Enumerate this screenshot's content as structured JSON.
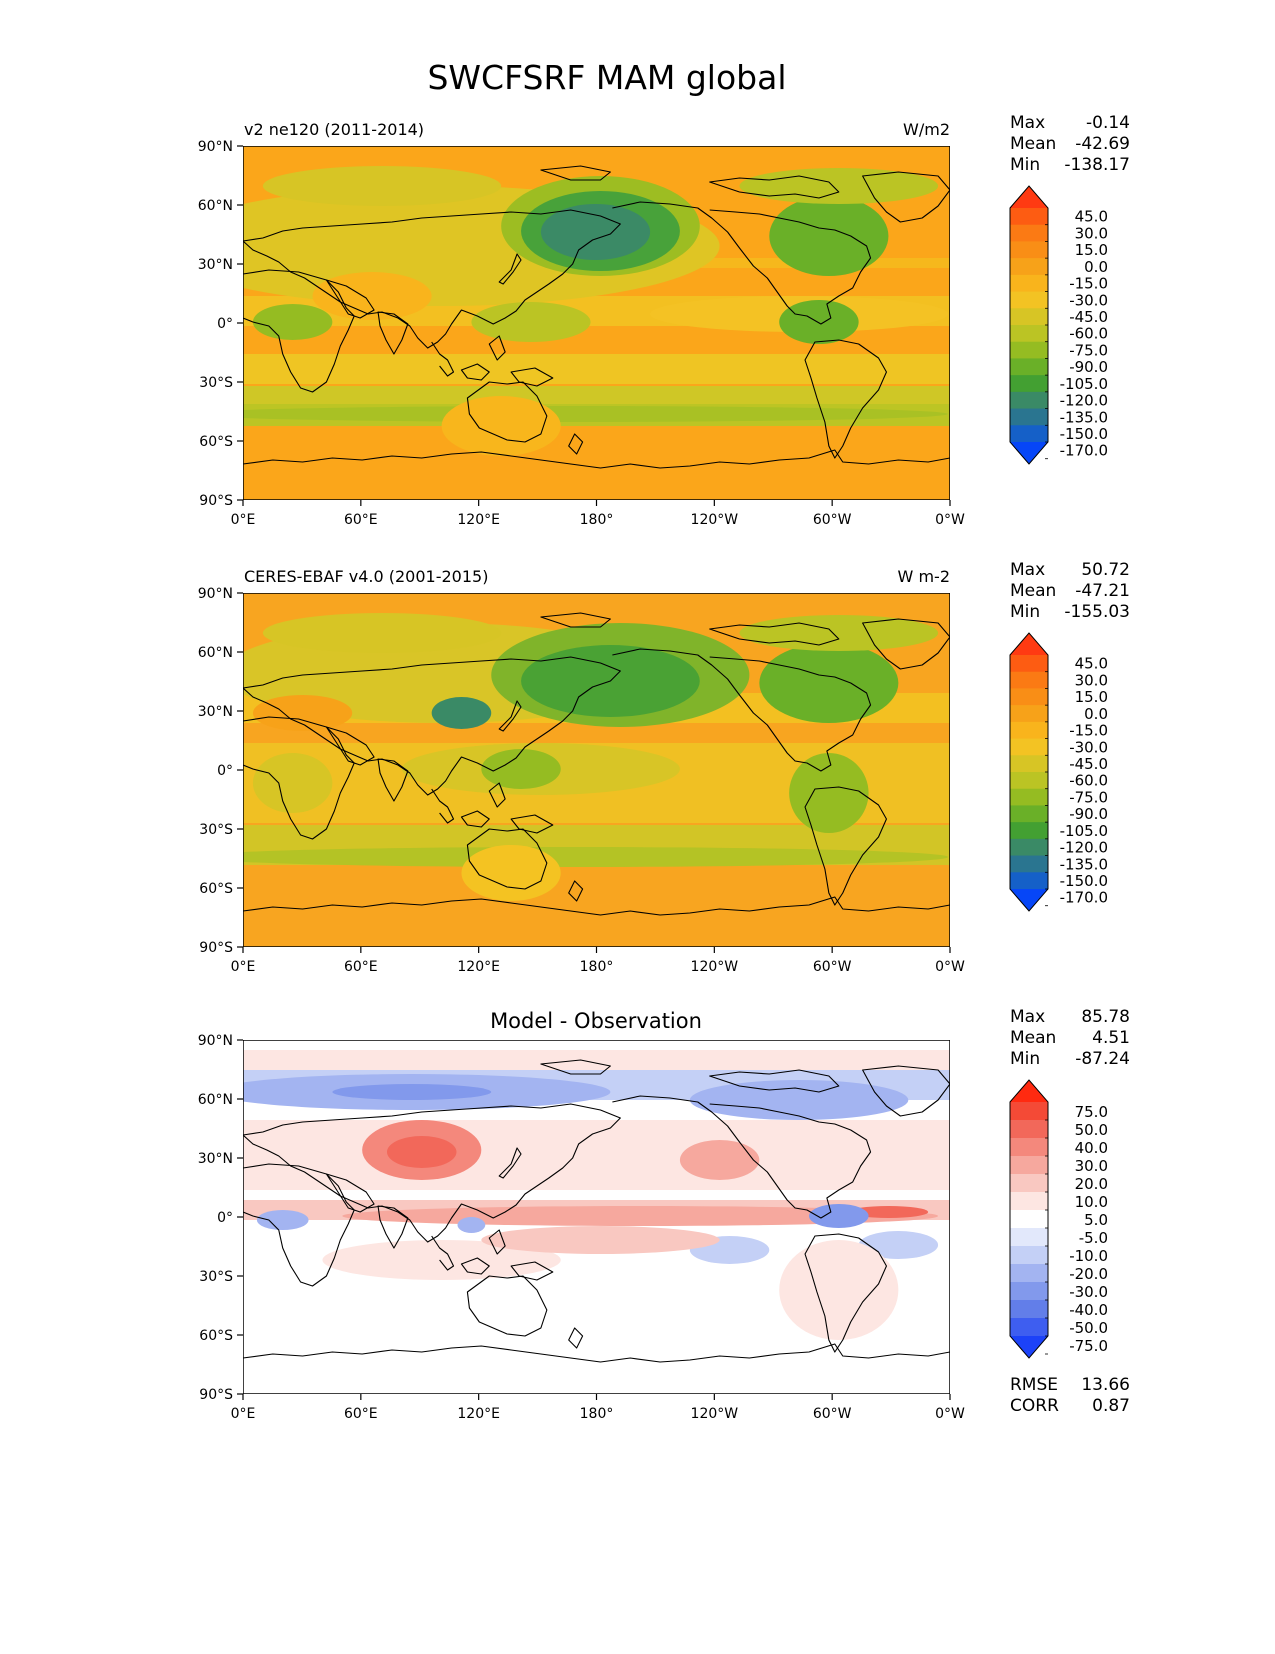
{
  "figure": {
    "title": "SWCFSRF MAM global"
  },
  "colors": {
    "ocean_model": "#fba61a",
    "ocean_obs": "#f8a520",
    "diff_background": "#ffffff",
    "coast": "#000000"
  },
  "axes": {
    "lat_ticks": [
      "90°N",
      "60°N",
      "30°N",
      "0°",
      "30°S",
      "60°S",
      "90°S"
    ],
    "lon_ticks": [
      "0°E",
      "60°E",
      "120°E",
      "180°",
      "120°W",
      "60°W",
      "0°W"
    ]
  },
  "panels": [
    {
      "id": "model",
      "left_title": "v2 ne120 (2011-2014)",
      "center_title": "",
      "right_title": "W/m2",
      "stats": {
        "max_label": "Max",
        "max": "-0.14",
        "mean_label": "Mean",
        "mean": "-42.69",
        "min_label": "Min",
        "min": "-138.17"
      },
      "colorbar": {
        "labels": [
          "45.0",
          "30.0",
          "15.0",
          "0.0",
          "-15.0",
          "-30.0",
          "-45.0",
          "-60.0",
          "-75.0",
          "-90.0",
          "-105.0",
          "-120.0",
          "-135.0",
          "-150.0",
          "-170.0"
        ],
        "colors": [
          "#ff3a12",
          "#fd5c12",
          "#fb7a14",
          "#f98e16",
          "#f7a219",
          "#f9b41c",
          "#f3c323",
          "#d7c525",
          "#bbc424",
          "#95bc22",
          "#6ab028",
          "#43a032",
          "#3a8a66",
          "#2a7590",
          "#1560c8",
          "#0646f7"
        ]
      }
    },
    {
      "id": "obs",
      "left_title": "CERES-EBAF v4.0 (2001-2015)",
      "center_title": "",
      "right_title": "W m-2",
      "stats": {
        "max_label": "Max",
        "max": "50.72",
        "mean_label": "Mean",
        "mean": "-47.21",
        "min_label": "Min",
        "min": "-155.03"
      },
      "colorbar": {
        "labels": [
          "45.0",
          "30.0",
          "15.0",
          "0.0",
          "-15.0",
          "-30.0",
          "-45.0",
          "-60.0",
          "-75.0",
          "-90.0",
          "-105.0",
          "-120.0",
          "-135.0",
          "-150.0",
          "-170.0"
        ],
        "colors": [
          "#ff3a12",
          "#fd5c12",
          "#fb7a14",
          "#f98e16",
          "#f7a219",
          "#f9b41c",
          "#f3c323",
          "#d7c525",
          "#bbc424",
          "#95bc22",
          "#6ab028",
          "#43a032",
          "#3a8a66",
          "#2a7590",
          "#1560c8",
          "#0646f7"
        ]
      }
    },
    {
      "id": "diff",
      "left_title": "",
      "center_title": "Model - Observation",
      "right_title": "",
      "stats": {
        "max_label": "Max",
        "max": "85.78",
        "mean_label": "Mean",
        "mean": "4.51",
        "min_label": "Min",
        "min": "-87.24"
      },
      "colorbar": {
        "labels": [
          "75.0",
          "50.0",
          "40.0",
          "30.0",
          "20.0",
          "10.0",
          "5.0",
          "-5.0",
          "-10.0",
          "-20.0",
          "-30.0",
          "-40.0",
          "-50.0",
          "-75.0"
        ],
        "colors": [
          "#ff2a10",
          "#f44a36",
          "#f2685a",
          "#f4887c",
          "#f6a89e",
          "#f9c8c1",
          "#fde6e2",
          "#ffffff",
          "#e2e8fb",
          "#c4d0f6",
          "#a3b4f1",
          "#8299ec",
          "#627ee9",
          "#3e5ef0",
          "#1c42f8"
        ]
      },
      "extra": {
        "rmse_label": "RMSE",
        "rmse": "13.66",
        "corr_label": "CORR",
        "corr": "0.87"
      }
    }
  ]
}
